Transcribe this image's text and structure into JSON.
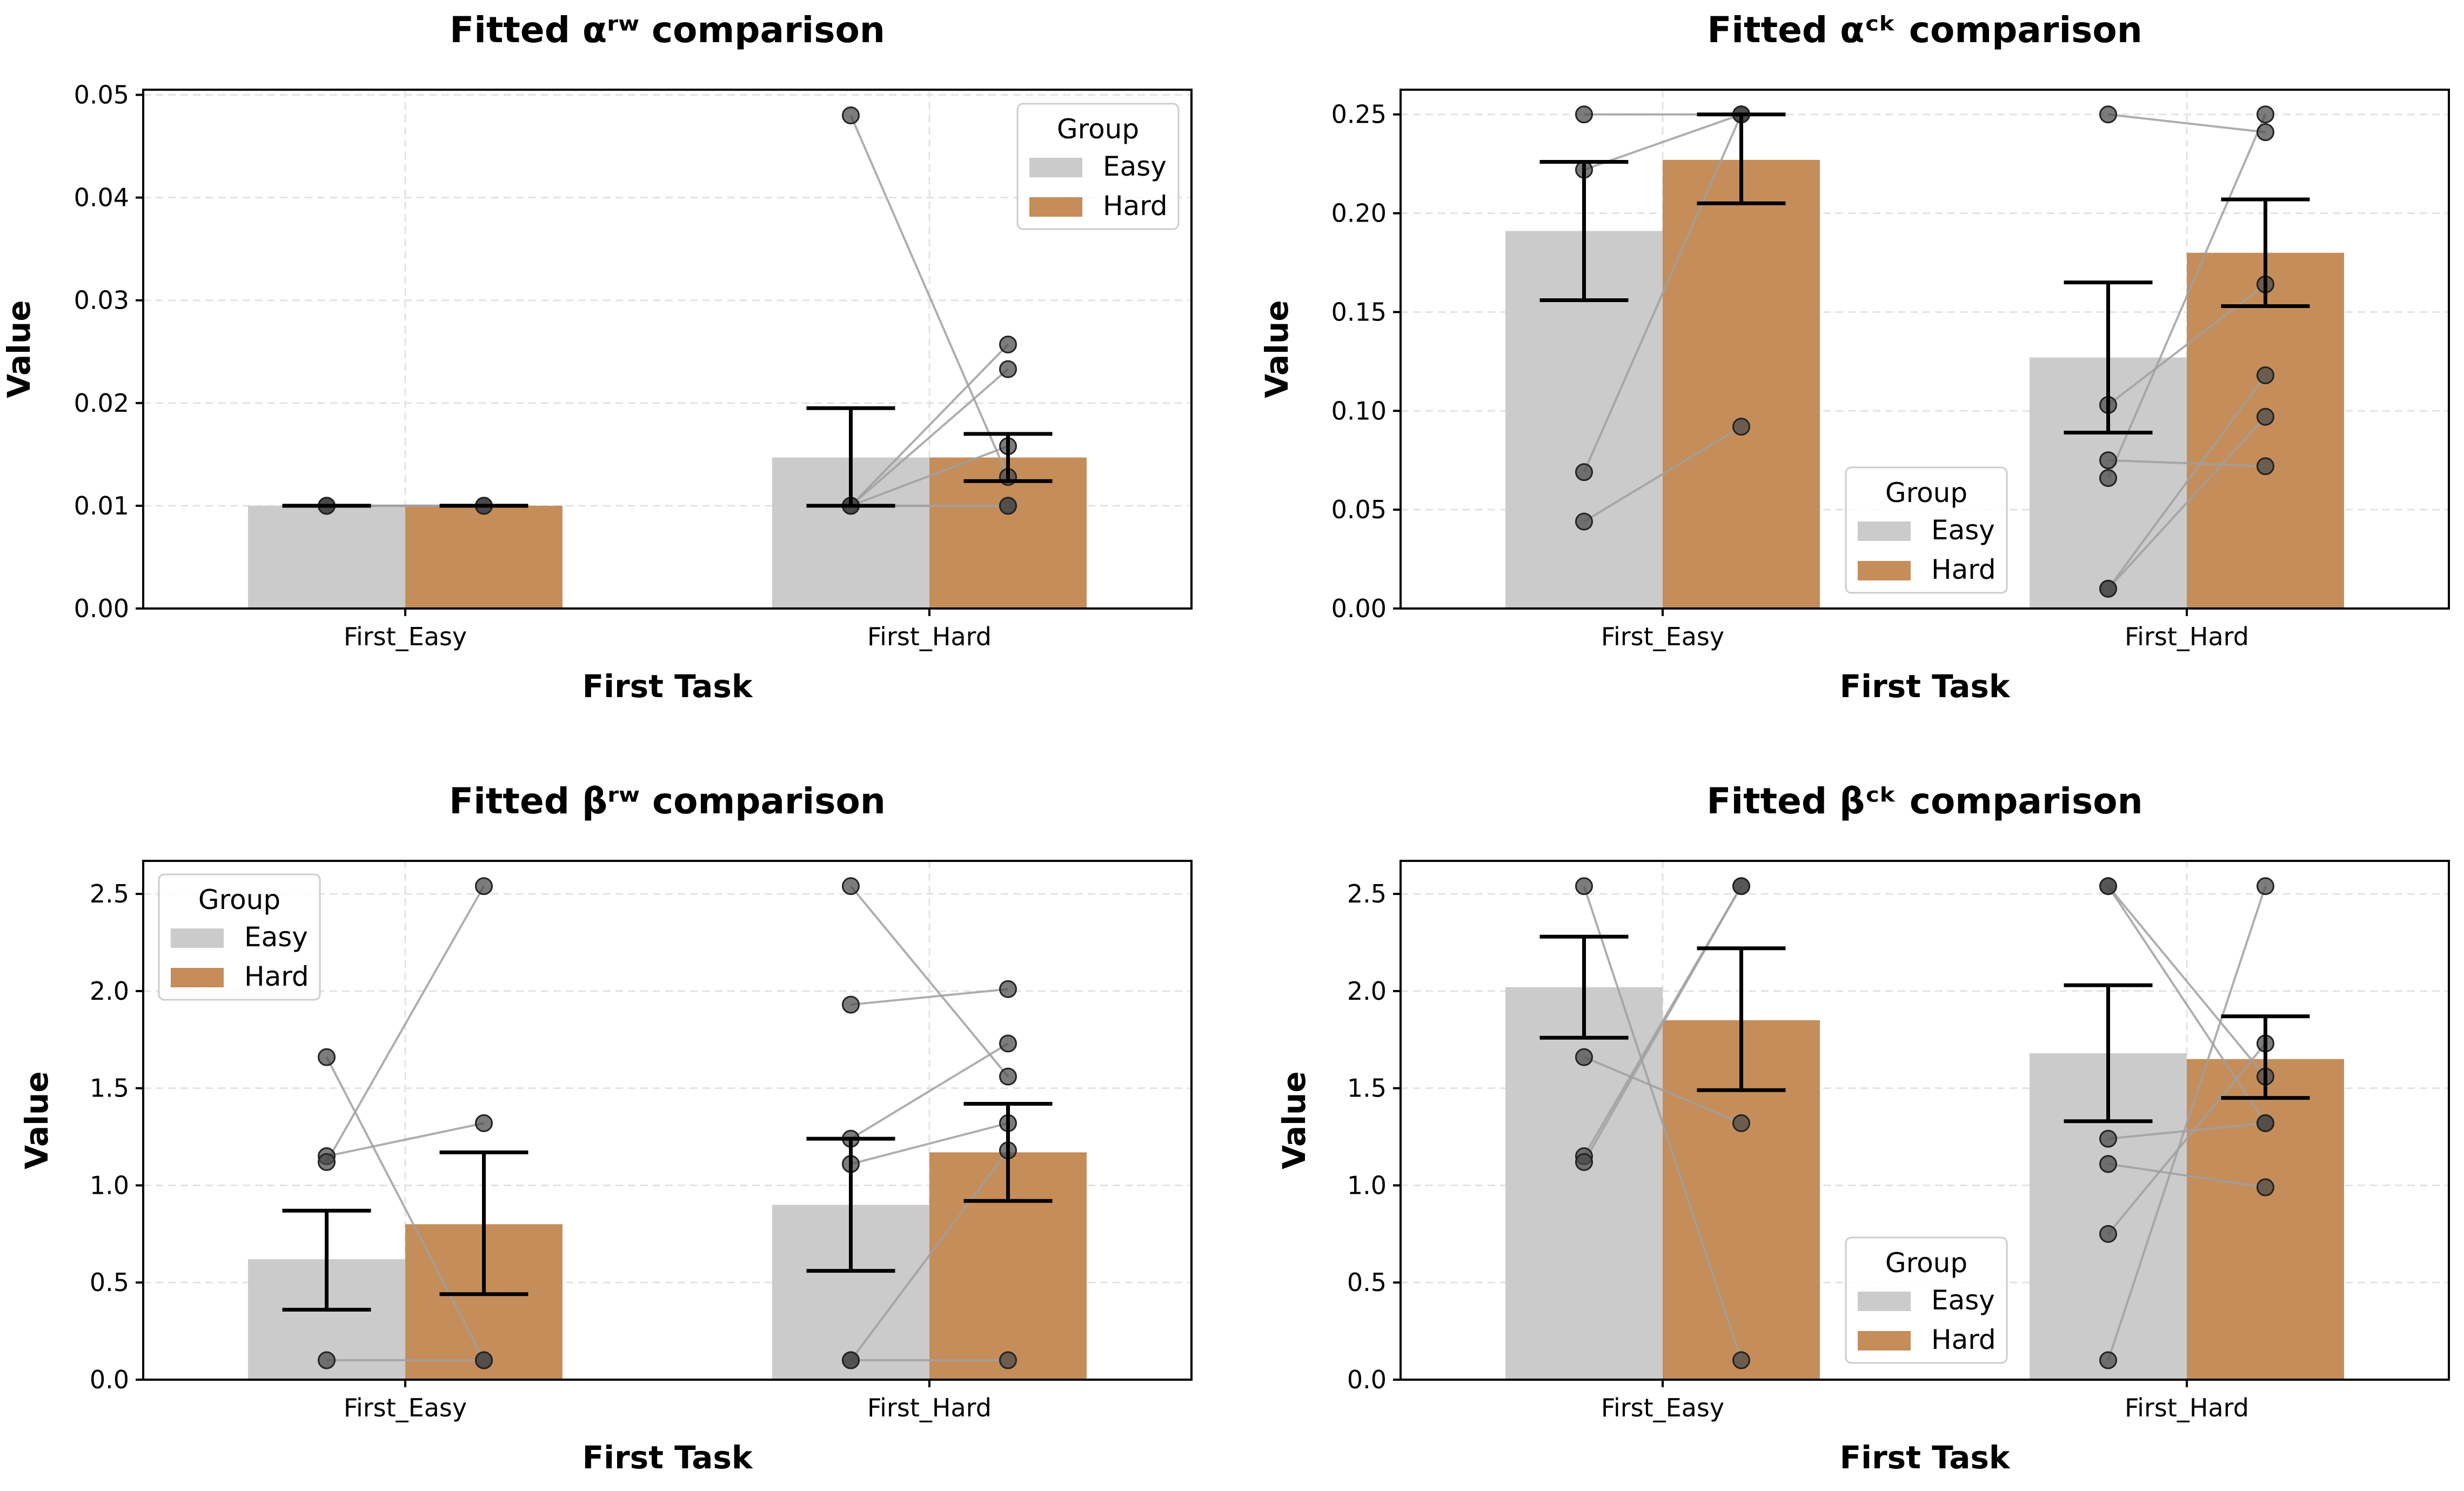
{
  "colors": {
    "easy": "#cbcbcb",
    "hard": "#c58d59",
    "point": "#4a4a4a",
    "line": "#a0a0a0"
  },
  "chart_data": [
    {
      "type": "bar",
      "title": "Fitted αʳʷ comparison",
      "xlabel": "First Task",
      "ylabel": "Value",
      "categories": [
        "First_Easy",
        "First_Hard"
      ],
      "ylim": [
        0,
        0.0505
      ],
      "yticks": [
        0.0,
        0.01,
        0.02,
        0.03,
        0.04,
        0.05
      ],
      "ytick_labels": [
        "0.00",
        "0.01",
        "0.02",
        "0.03",
        "0.04",
        "0.05"
      ],
      "legend": {
        "title": "Group",
        "placement": "top-right"
      },
      "series": [
        {
          "name": "Easy",
          "values": [
            0.01,
            0.0147
          ],
          "err_low": [
            0.01,
            0.01
          ],
          "err_high": [
            0.01,
            0.0195
          ]
        },
        {
          "name": "Hard",
          "values": [
            0.01,
            0.0147
          ],
          "err_low": [
            0.01,
            0.0124
          ],
          "err_high": [
            0.01,
            0.017
          ]
        }
      ],
      "subjects": [
        {
          "easy": [
            0.01,
            0.01,
            0.01,
            0.01
          ],
          "hard": [
            0.01,
            0.01,
            0.01,
            0.01
          ]
        },
        {
          "easy": [
            0.048,
            0.01,
            0.01,
            0.01,
            0.01,
            0.01
          ],
          "hard": [
            0.0128,
            0.0257,
            0.0233,
            0.0158,
            0.01,
            0.01
          ]
        }
      ]
    },
    {
      "type": "bar",
      "title": "Fitted αᶜᵏ comparison",
      "xlabel": "First Task",
      "ylabel": "Value",
      "categories": [
        "First_Easy",
        "First_Hard"
      ],
      "ylim": [
        0,
        0.2625
      ],
      "yticks": [
        0.0,
        0.05,
        0.1,
        0.15,
        0.2,
        0.25
      ],
      "ytick_labels": [
        "0.00",
        "0.05",
        "0.10",
        "0.15",
        "0.20",
        "0.25"
      ],
      "legend": {
        "title": "Group",
        "placement": "lower-center"
      },
      "series": [
        {
          "name": "Easy",
          "values": [
            0.191,
            0.127
          ],
          "err_low": [
            0.156,
            0.089
          ],
          "err_high": [
            0.226,
            0.165
          ]
        },
        {
          "name": "Hard",
          "values": [
            0.227,
            0.18
          ],
          "err_low": [
            0.205,
            0.153
          ],
          "err_high": [
            0.25,
            0.207
          ]
        }
      ],
      "subjects": [
        {
          "easy": [
            0.25,
            0.222,
            0.069,
            0.044
          ],
          "hard": [
            0.25,
            0.25,
            0.25,
            0.092
          ]
        },
        {
          "easy": [
            0.25,
            0.103,
            0.075,
            0.066,
            0.01,
            0.01
          ],
          "hard": [
            0.241,
            0.164,
            0.072,
            0.25,
            0.118,
            0.097
          ]
        }
      ]
    },
    {
      "type": "bar",
      "title": "Fitted βʳʷ comparison",
      "xlabel": "First Task",
      "ylabel": "Value",
      "categories": [
        "First_Easy",
        "First_Hard"
      ],
      "ylim": [
        0,
        2.67
      ],
      "yticks": [
        0.0,
        0.5,
        1.0,
        1.5,
        2.0,
        2.5
      ],
      "ytick_labels": [
        "0.0",
        "0.5",
        "1.0",
        "1.5",
        "2.0",
        "2.5"
      ],
      "legend": {
        "title": "Group",
        "placement": "top-left"
      },
      "series": [
        {
          "name": "Easy",
          "values": [
            0.62,
            0.9
          ],
          "err_low": [
            0.36,
            0.56
          ],
          "err_high": [
            0.87,
            1.24
          ]
        },
        {
          "name": "Hard",
          "values": [
            0.8,
            1.17
          ],
          "err_low": [
            0.44,
            0.92
          ],
          "err_high": [
            1.17,
            1.42
          ]
        }
      ],
      "subjects": [
        {
          "easy": [
            1.66,
            1.15,
            1.12,
            0.1
          ],
          "hard": [
            0.1,
            1.32,
            2.54,
            0.1
          ]
        },
        {
          "easy": [
            2.54,
            1.93,
            1.24,
            1.11,
            0.1,
            0.1
          ],
          "hard": [
            1.56,
            2.01,
            1.73,
            1.32,
            1.18,
            0.1
          ]
        }
      ]
    },
    {
      "type": "bar",
      "title": "Fitted βᶜᵏ comparison",
      "xlabel": "First Task",
      "ylabel": "Value",
      "categories": [
        "First_Easy",
        "First_Hard"
      ],
      "ylim": [
        0,
        2.67
      ],
      "yticks": [
        0.0,
        0.5,
        1.0,
        1.5,
        2.0,
        2.5
      ],
      "ytick_labels": [
        "0.0",
        "0.5",
        "1.0",
        "1.5",
        "2.0",
        "2.5"
      ],
      "legend": {
        "title": "Group",
        "placement": "lower-center"
      },
      "series": [
        {
          "name": "Easy",
          "values": [
            2.02,
            1.68
          ],
          "err_low": [
            1.76,
            1.33
          ],
          "err_high": [
            2.28,
            2.03
          ]
        },
        {
          "name": "Hard",
          "values": [
            1.85,
            1.65
          ],
          "err_low": [
            1.49,
            1.45
          ],
          "err_high": [
            2.22,
            1.87
          ]
        }
      ],
      "subjects": [
        {
          "easy": [
            2.54,
            1.66,
            1.15,
            1.12
          ],
          "hard": [
            0.1,
            1.32,
            2.54,
            2.54
          ]
        },
        {
          "easy": [
            2.54,
            2.54,
            1.24,
            1.11,
            0.75,
            0.1
          ],
          "hard": [
            1.32,
            1.56,
            1.32,
            0.99,
            1.73,
            2.54
          ]
        }
      ]
    }
  ]
}
